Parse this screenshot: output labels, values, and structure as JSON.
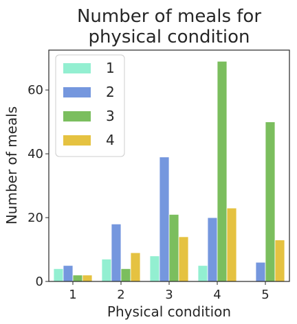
{
  "chart_data": {
    "type": "bar",
    "title_lines": [
      "Number of meals for",
      "physical condition"
    ],
    "xlabel": "Physical condition",
    "ylabel": "Number of meals",
    "categories": [
      "1",
      "2",
      "3",
      "4",
      "5"
    ],
    "yticks": [
      0,
      20,
      40,
      60
    ],
    "ylim": [
      0,
      72.5
    ],
    "grid": false,
    "legend_position": "top-left",
    "series": [
      {
        "name": "1",
        "color": "#93EFD1",
        "values": [
          4,
          7,
          8,
          5,
          0
        ]
      },
      {
        "name": "2",
        "color": "#7597DE",
        "values": [
          5,
          18,
          39,
          20,
          6
        ]
      },
      {
        "name": "3",
        "color": "#7BBE5E",
        "values": [
          2,
          4,
          21,
          69,
          50
        ]
      },
      {
        "name": "4",
        "color": "#E5C241",
        "values": [
          2,
          9,
          14,
          23,
          13
        ]
      }
    ]
  }
}
